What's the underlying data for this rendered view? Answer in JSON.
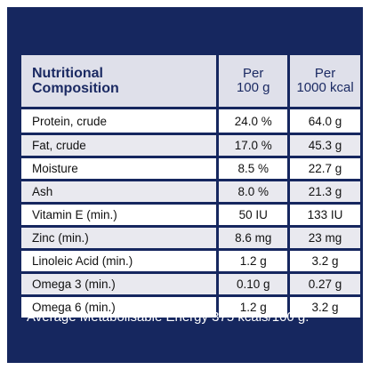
{
  "table": {
    "header": {
      "col1_line1": "Nutritional",
      "col1_line2": "Composition",
      "col2_line1": "Per",
      "col2_line2": "100 g",
      "col3_line1": "Per",
      "col3_line2": "1000 kcal"
    },
    "rows": [
      {
        "name": "Protein, crude",
        "per100g": "24.0 %",
        "per1000kcal": "64.0 g"
      },
      {
        "name": "Fat, crude",
        "per100g": "17.0 %",
        "per1000kcal": "45.3 g"
      },
      {
        "name": "Moisture",
        "per100g": "8.5 %",
        "per1000kcal": "22.7 g"
      },
      {
        "name": "Ash",
        "per100g": "8.0 %",
        "per1000kcal": "21.3 g"
      },
      {
        "name": "Vitamin E (min.)",
        "per100g": "50 IU",
        "per1000kcal": "133 IU"
      },
      {
        "name": "Zinc (min.)",
        "per100g": "8.6 mg",
        "per1000kcal": "23 mg"
      },
      {
        "name": "Linoleic Acid (min.)",
        "per100g": "1.2 g",
        "per1000kcal": "3.2 g"
      },
      {
        "name": "Omega 3 (min.)",
        "per100g": "0.10 g",
        "per1000kcal": "0.27 g"
      },
      {
        "name": "Omega 6 (min.)",
        "per100g": "1.2 g",
        "per1000kcal": "3.2 g"
      }
    ]
  },
  "footer": {
    "text": "Average Metabolisable Energy 375 kcals/100 g."
  },
  "colors": {
    "background": "#16275f",
    "header_cell": "#dfe0ea",
    "row_light": "#ffffff",
    "row_shade": "#e9e9ef",
    "header_text": "#1b2a63"
  }
}
